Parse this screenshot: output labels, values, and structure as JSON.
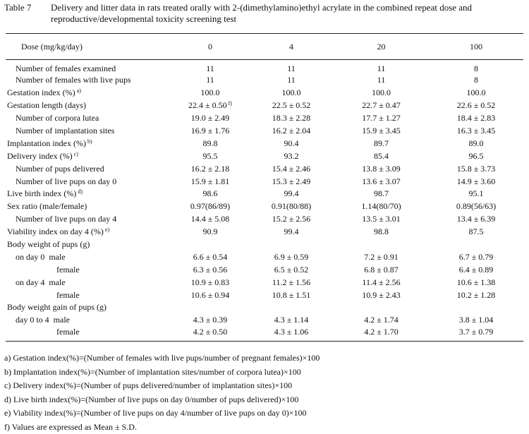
{
  "header": {
    "label": "Table 7",
    "title": "Delivery and litter data in rats treated orally with 2-(dimethylamino)ethyl acrylate in the combined repeat dose and reproductive/developmental toxicity screening test"
  },
  "table": {
    "columns": [
      "Dose (mg/kg/day)",
      "0",
      "4",
      "20",
      "100"
    ],
    "rows": [
      {
        "label": "Number of females examined",
        "values": [
          "11",
          "11",
          "11",
          "8"
        ]
      },
      {
        "label": "Number of females with live pups",
        "values": [
          "11",
          "11",
          "11",
          "8"
        ]
      },
      {
        "label": "Gestation index (%)",
        "note": "a)",
        "values": [
          "100.0",
          "100.0",
          "100.0",
          "100.0"
        ]
      },
      {
        "label": "Gestation length (days)",
        "values": [
          "22.4 ± 0.50",
          "22.5 ± 0.52",
          "22.7 ± 0.47",
          "22.6 ± 0.52"
        ],
        "value_note": "f)"
      },
      {
        "label": "Number of corpora lutea",
        "values": [
          "19.0 ± 2.49",
          "18.3 ± 2.28",
          "17.7 ± 1.27",
          "18.4 ± 2.83"
        ]
      },
      {
        "label": "Number of implantation sites",
        "values": [
          "16.9 ± 1.76",
          "16.2 ± 2.04",
          "15.9 ± 3.45",
          "16.3 ± 3.45"
        ]
      },
      {
        "label": "Implantation index (%)",
        "note": "b)",
        "values": [
          "89.8",
          "90.4",
          "89.7",
          "89.0"
        ]
      },
      {
        "label": "Delivery index (%)",
        "note": "c)",
        "values": [
          "95.5",
          "93.2",
          "85.4",
          "96.5"
        ]
      },
      {
        "label": "Number of pups delivered",
        "values": [
          "16.2 ± 2.18",
          "15.4 ± 2.46",
          "13.8 ± 3.09",
          "15.8 ± 3.73"
        ]
      },
      {
        "label": "Number of live pups on day 0",
        "values": [
          "15.9 ± 1.81",
          "15.3 ± 2.49",
          "13.6 ± 3.07",
          "14.9 ± 3.60"
        ]
      },
      {
        "label": "Live birth index (%)",
        "note": "d)",
        "values": [
          "98.6",
          "99.4",
          "98.7",
          "95.1"
        ]
      },
      {
        "label": "Sex ratio (male/female)",
        "values": [
          "0.97(86/89)",
          "0.91(80/88)",
          "1.14(80/70)",
          "0.89(56/63)"
        ]
      },
      {
        "label": "Number of live pups on day 4",
        "values": [
          "14.4 ± 5.08",
          "15.2 ± 2.56",
          "13.5 ± 3.01",
          "13.4 ± 6.39"
        ]
      },
      {
        "label": "Viability index on day 4 (%)",
        "note": "e)",
        "values": [
          "90.9",
          "99.4",
          "98.8",
          "87.5"
        ]
      },
      {
        "label": "Body weight of pups (g)",
        "values": []
      },
      {
        "label": "on day 0  male",
        "values": [
          "6.6 ± 0.54",
          "6.9 ± 0.59",
          "7.2 ± 0.91",
          "6.7 ± 0.79"
        ]
      },
      {
        "label": "female",
        "values": [
          "6.3 ± 0.56",
          "6.5 ± 0.52",
          "6.8 ± 0.87",
          "6.4 ± 0.89"
        ]
      },
      {
        "label": "on day 4  male",
        "values": [
          "10.9 ± 0.83",
          "11.2 ± 1.56",
          "11.4 ± 2.56",
          "10.6 ± 1.38"
        ]
      },
      {
        "label": "female",
        "values": [
          "10.6 ± 0.94",
          "10.8 ± 1.51",
          "10.9 ± 2.43",
          "10.2 ± 1.28"
        ]
      },
      {
        "label": "Body weight gain of pups (g)",
        "values": []
      },
      {
        "label": "day 0 to 4  male",
        "values": [
          "4.3 ± 0.39",
          "4.3 ± 1.14",
          "4.2 ± 1.74",
          "3.8 ± 1.04"
        ]
      },
      {
        "label": "female",
        "values": [
          "4.2 ± 0.50",
          "4.3 ± 1.06",
          "4.2 ± 1.70",
          "3.7 ± 0.79"
        ]
      }
    ]
  },
  "footnotes": [
    "a) Gestation index(%)=(Number of females with live pups/number of pregnant females)×100",
    "b) Implantation index(%)=(Number of implantation sites/number of corpora lutea)×100",
    "c) Delivery index(%)=(Number of pups delivered/number of implantation sites)×100",
    "d) Live birth index(%)=(Number of live pups on day 0/number of pups delivered)×100",
    "e) Viability index(%)=(Number of live pups on day 4/number of live pups on day 0)×100",
    "f) Values are expressed as Mean ± S.D."
  ]
}
